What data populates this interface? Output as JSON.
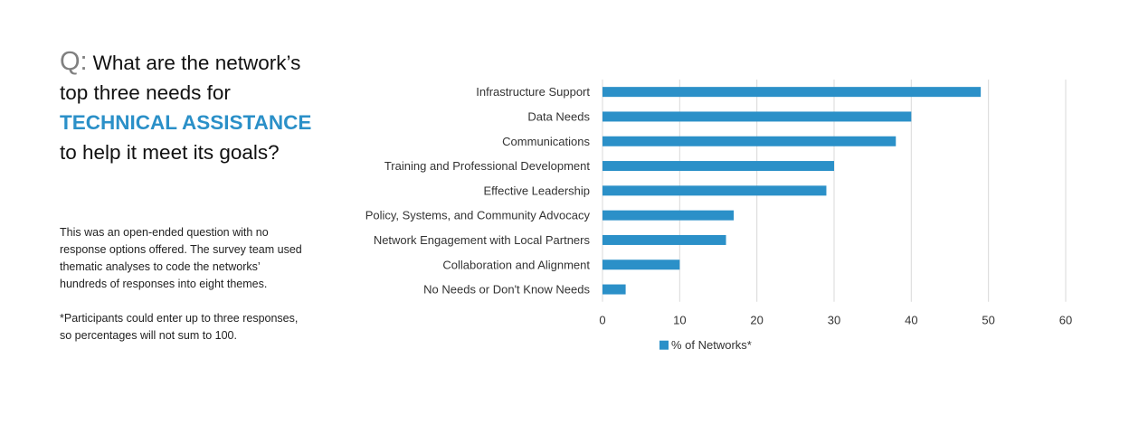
{
  "question": {
    "q_label": "Q:",
    "text_before": "What are the network’s top three needs for",
    "highlight": "TECHNICAL ASSISTANCE",
    "text_after": "to help it meet its goals?"
  },
  "description": {
    "paragraph1": "This was an open-ended  question with no response options offered. The survey team used thematic analyses to code the networks’ hundreds of responses into eight themes.",
    "paragraph2": "*Participants could enter up to three responses, so percentages will not sum to 100."
  },
  "colors": {
    "accent": "#2b90c8",
    "bar": "#2b90c8",
    "grid": "#d9d9d9"
  },
  "chart_data": {
    "type": "bar",
    "orientation": "horizontal",
    "categories": [
      "Infrastructure Support",
      "Data Needs",
      "Communications",
      "Training and Professional Development",
      "Effective Leadership",
      "Policy, Systems, and Community Advocacy",
      "Network Engagement with Local Partners",
      "Collaboration and Alignment",
      "No Needs or Don't Know Needs"
    ],
    "series": [
      {
        "name": "% of Networks*",
        "values": [
          49,
          40,
          38,
          30,
          29,
          17,
          16,
          10,
          3
        ]
      }
    ],
    "xlim": [
      0,
      60
    ],
    "xticks": [
      "0",
      "10",
      "20",
      "30",
      "40",
      "50",
      "60"
    ],
    "grid": true,
    "legend_position": "bottom"
  }
}
